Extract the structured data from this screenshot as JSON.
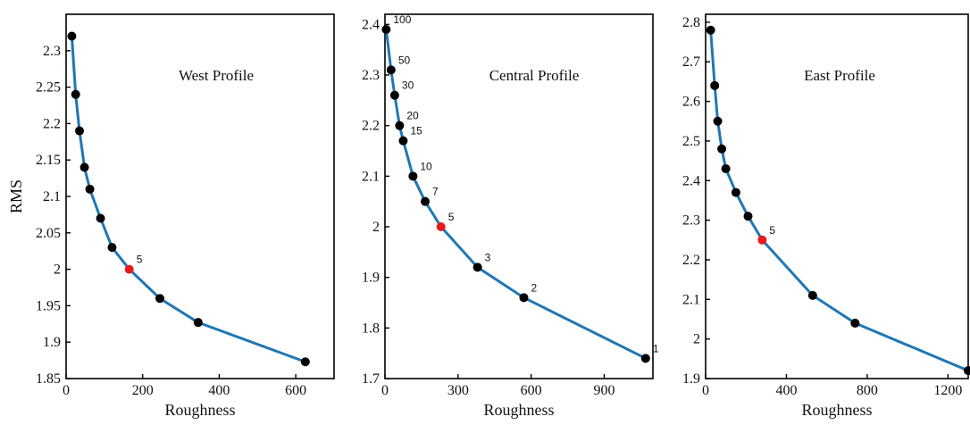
{
  "chart_data": [
    {
      "type": "line",
      "title": "West Profile",
      "xlabel": "Roughness",
      "ylabel": "RMS",
      "xlim": [
        0,
        700
      ],
      "ylim": [
        1.85,
        2.35
      ],
      "xticks": [
        "0",
        "200",
        "400",
        "600"
      ],
      "yticks": [
        "1.85",
        "1.9",
        "1.95",
        "2",
        "2.05",
        "2.1",
        "2.15",
        "2.2",
        "2.25",
        "2.3"
      ],
      "line_color": "#1f77b4",
      "highlight_color": "#e8191c",
      "x": [
        15,
        25,
        35,
        48,
        62,
        90,
        120,
        165,
        245,
        345,
        625
      ],
      "y": [
        2.32,
        2.24,
        2.19,
        2.14,
        2.11,
        2.07,
        2.03,
        2.0,
        1.96,
        1.927,
        1.873
      ],
      "point_labels": [
        "",
        "",
        "",
        "",
        "",
        "",
        "",
        "5",
        "",
        "",
        ""
      ],
      "highlight_index": 7
    },
    {
      "type": "line",
      "title": "Central Profile",
      "xlabel": "Roughness",
      "ylabel": "",
      "xlim": [
        0,
        1100
      ],
      "ylim": [
        1.7,
        2.42
      ],
      "xticks": [
        "0",
        "300",
        "600",
        "900"
      ],
      "yticks": [
        "1.7",
        "1.8",
        "1.9",
        "2",
        "2.1",
        "2.2",
        "2.3",
        "2.4"
      ],
      "line_color": "#1f77b4",
      "highlight_color": "#e8191c",
      "x": [
        5,
        25,
        40,
        60,
        75,
        115,
        165,
        230,
        380,
        570,
        1070
      ],
      "y": [
        2.39,
        2.31,
        2.26,
        2.2,
        2.17,
        2.1,
        2.05,
        2.0,
        1.92,
        1.86,
        1.74
      ],
      "point_labels": [
        "100",
        "50",
        "30",
        "20",
        "15",
        "10",
        "7",
        "5",
        "3",
        "2",
        "1"
      ],
      "highlight_index": 7
    },
    {
      "type": "line",
      "title": "East Profile",
      "xlabel": "Roughness",
      "ylabel": "",
      "xlim": [
        0,
        1300
      ],
      "ylim": [
        1.9,
        2.82
      ],
      "xticks": [
        "0",
        "400",
        "800",
        "1200"
      ],
      "yticks": [
        "1.9",
        "2",
        "2.1",
        "2.2",
        "2.3",
        "2.4",
        "2.5",
        "2.6",
        "2.7",
        "2.8"
      ],
      "line_color": "#1f77b4",
      "highlight_color": "#e8191c",
      "x": [
        25,
        45,
        60,
        80,
        100,
        150,
        210,
        280,
        530,
        740,
        1300
      ],
      "y": [
        2.78,
        2.64,
        2.55,
        2.48,
        2.43,
        2.37,
        2.31,
        2.25,
        2.11,
        2.04,
        1.92
      ],
      "point_labels": [
        "",
        "",
        "",
        "",
        "",
        "",
        "",
        "5",
        "",
        "",
        ""
      ],
      "highlight_index": 7
    }
  ]
}
